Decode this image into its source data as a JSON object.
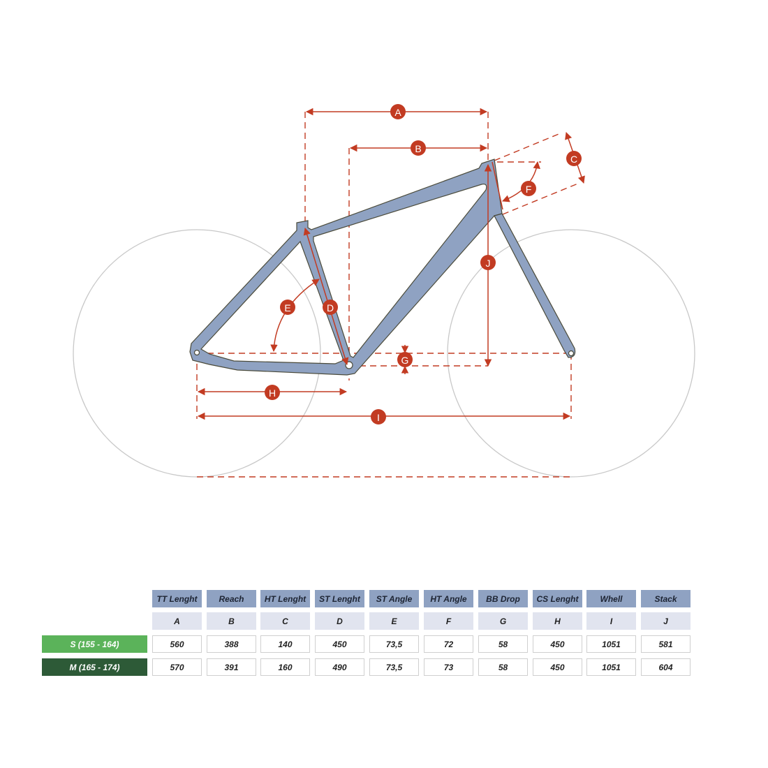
{
  "colors": {
    "frame": "#8fa2c2",
    "frame_outline": "#4a4a3a",
    "dimension": "#c23b22",
    "wheel": "#c8c8c8",
    "header_bg": "#8fa2c2",
    "letter_bg": "#e1e4ef",
    "size_s": "#5bb35a",
    "size_m": "#2d5a37"
  },
  "diagram": {
    "labels": [
      "A",
      "B",
      "C",
      "D",
      "E",
      "F",
      "G",
      "H",
      "I",
      "J"
    ]
  },
  "table": {
    "headers": [
      "TT Lenght",
      "Reach",
      "HT Lenght",
      "ST Lenght",
      "ST Angle",
      "HT Angle",
      "BB Drop",
      "CS Lenght",
      "Whell",
      "Stack"
    ],
    "letters": [
      "A",
      "B",
      "C",
      "D",
      "E",
      "F",
      "G",
      "H",
      "I",
      "J"
    ],
    "rows": [
      {
        "size": "S (155 - 164)",
        "values": [
          "560",
          "388",
          "140",
          "450",
          "73,5",
          "72",
          "58",
          "450",
          "1051",
          "581"
        ]
      },
      {
        "size": "M (165 - 174)",
        "values": [
          "570",
          "391",
          "160",
          "490",
          "73,5",
          "73",
          "58",
          "450",
          "1051",
          "604"
        ]
      }
    ]
  }
}
